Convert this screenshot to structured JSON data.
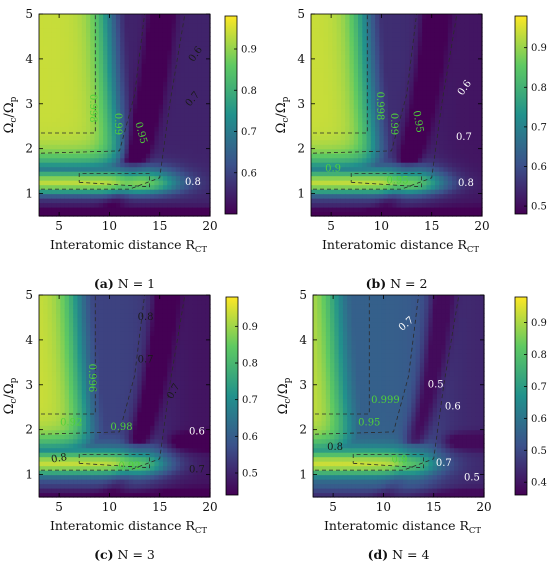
{
  "figure": {
    "panels_title": "Four heatmap panels"
  },
  "colormap": [
    "#440154",
    "#3b528b",
    "#21918c",
    "#5ec962",
    "#fde725"
  ],
  "contour_label_colors": {
    "dark": "#1a1a1a",
    "light": "#ffffff",
    "green": "#4fd13a"
  },
  "chart_data": [
    {
      "type": "heatmap",
      "caption": "(a) N = 1",
      "caption_bold": "(a)",
      "caption_rest": " N = 1",
      "xlabel": "Interatomic distance R",
      "xlabel_sub": "CT",
      "ylabel": "Ω",
      "ylabel_parts": [
        "Ω",
        "c",
        "/Ω",
        "p"
      ],
      "xlim": [
        3,
        20
      ],
      "ylim": [
        0.5,
        5
      ],
      "xticks": [
        5,
        10,
        15,
        20
      ],
      "yticks": [
        1,
        2,
        3,
        4,
        5
      ],
      "colorbar": {
        "range": [
          0.5,
          0.98
        ],
        "ticks": [
          0.6,
          0.7,
          0.8,
          0.9
        ],
        "labels": [
          "0.6",
          "0.7",
          "0.8",
          "0.9"
        ]
      },
      "contour_labels": [
        {
          "text": "0.6",
          "x": 18.6,
          "y": 4.1,
          "color": "dark",
          "rot": -55
        },
        {
          "text": "0.7",
          "x": 18.3,
          "y": 3.1,
          "color": "dark",
          "rot": -50
        },
        {
          "text": "0.8",
          "x": 18.3,
          "y": 1.25,
          "color": "light",
          "rot": 0
        },
        {
          "text": "0.998",
          "x": 8.3,
          "y": 2.9,
          "color": "green",
          "rot": 90
        },
        {
          "text": "0.99",
          "x": 10.8,
          "y": 2.55,
          "color": "green",
          "rot": 90
        },
        {
          "text": "0.95",
          "x": 13.1,
          "y": 2.35,
          "color": "green",
          "rot": 75
        }
      ]
    },
    {
      "type": "heatmap",
      "caption": "(b) N = 2",
      "caption_bold": "(b)",
      "caption_rest": " N = 2",
      "xlabel": "Interatomic distance R",
      "xlabel_sub": "CT",
      "ylabel": "Ω",
      "ylabel_parts": [
        "Ω",
        "c",
        "/Ω",
        "p"
      ],
      "xlim": [
        3,
        20
      ],
      "ylim": [
        0.5,
        5
      ],
      "xticks": [
        5,
        10,
        15,
        20
      ],
      "yticks": [
        1,
        2,
        3,
        4,
        5
      ],
      "colorbar": {
        "range": [
          0.48,
          0.98
        ],
        "ticks": [
          0.5,
          0.6,
          0.7,
          0.8,
          0.9
        ],
        "labels": [
          "0.5",
          "0.6",
          "0.7",
          "0.8",
          "0.9"
        ]
      },
      "contour_labels": [
        {
          "text": "0.6",
          "x": 18.3,
          "y": 3.35,
          "color": "light",
          "rot": -55
        },
        {
          "text": "0.7",
          "x": 18.2,
          "y": 2.25,
          "color": "light",
          "rot": 0
        },
        {
          "text": "0.8",
          "x": 18.4,
          "y": 1.22,
          "color": "light",
          "rot": 0
        },
        {
          "text": "0.998",
          "x": 9.8,
          "y": 2.95,
          "color": "green",
          "rot": 90
        },
        {
          "text": "0.99",
          "x": 11.2,
          "y": 2.55,
          "color": "green",
          "rot": 90
        },
        {
          "text": "0.95",
          "x": 13.6,
          "y": 2.6,
          "color": "green",
          "rot": 80
        },
        {
          "text": "0.9",
          "x": 5.2,
          "y": 1.55,
          "color": "green",
          "rot": 0
        },
        {
          "text": "0.95",
          "x": 11.6,
          "y": 1.28,
          "color": "green",
          "rot": 0
        }
      ]
    },
    {
      "type": "heatmap",
      "caption": "(c) N = 3",
      "caption_bold": "(c)",
      "caption_rest": " N = 3",
      "xlabel": "Interatomic distance R",
      "xlabel_sub": "CT",
      "ylabel": "Ω",
      "ylabel_parts": [
        "Ω",
        "c",
        "/Ω",
        "p"
      ],
      "xlim": [
        3,
        20
      ],
      "ylim": [
        0.5,
        5
      ],
      "xticks": [
        5,
        10,
        15,
        20
      ],
      "yticks": [
        1,
        2,
        3,
        4,
        5
      ],
      "colorbar": {
        "range": [
          0.44,
          0.98
        ],
        "ticks": [
          0.5,
          0.6,
          0.7,
          0.8,
          0.9
        ],
        "labels": [
          "0.5",
          "0.6",
          "0.7",
          "0.8",
          "0.9"
        ]
      },
      "contour_labels": [
        {
          "text": "0.8",
          "x": 13.6,
          "y": 4.5,
          "color": "dark",
          "rot": 0
        },
        {
          "text": "0.7",
          "x": 13.6,
          "y": 3.55,
          "color": "dark",
          "rot": 0
        },
        {
          "text": "0.7",
          "x": 16.4,
          "y": 2.85,
          "color": "dark",
          "rot": -60
        },
        {
          "text": "0.996",
          "x": 8.2,
          "y": 3.15,
          "color": "green",
          "rot": 90
        },
        {
          "text": "0.92",
          "x": 6.2,
          "y": 2.15,
          "color": "green",
          "rot": 0
        },
        {
          "text": "0.98",
          "x": 11.2,
          "y": 2.05,
          "color": "green",
          "rot": 0
        },
        {
          "text": "0.6",
          "x": 18.7,
          "y": 1.95,
          "color": "light",
          "rot": 0
        },
        {
          "text": "0.8",
          "x": 5.0,
          "y": 1.35,
          "color": "dark",
          "rot": -10
        },
        {
          "text": "0.92",
          "x": 12.0,
          "y": 1.18,
          "color": "green",
          "rot": 0
        },
        {
          "text": "0.7",
          "x": 18.7,
          "y": 1.1,
          "color": "dark",
          "rot": 0
        }
      ]
    },
    {
      "type": "heatmap",
      "caption": "(d) N = 4",
      "caption_bold": "(d)",
      "caption_rest": " N = 4",
      "xlabel": "Interatomic distance R",
      "xlabel_sub": "CT",
      "ylabel": "Ω",
      "ylabel_parts": [
        "Ω",
        "c",
        "/Ω",
        "p"
      ],
      "xlim": [
        3,
        20
      ],
      "ylim": [
        0.5,
        5
      ],
      "xticks": [
        5,
        10,
        15,
        20
      ],
      "yticks": [
        1,
        2,
        3,
        4,
        5
      ],
      "colorbar": {
        "range": [
          0.36,
          0.98
        ],
        "ticks": [
          0.4,
          0.5,
          0.6,
          0.7,
          0.8,
          0.9
        ],
        "labels": [
          "0.4",
          "0.5",
          "0.6",
          "0.7",
          "0.8",
          "0.9"
        ]
      },
      "contour_labels": [
        {
          "text": "0.7",
          "x": 12.3,
          "y": 4.35,
          "color": "light",
          "rot": -40
        },
        {
          "text": "0.999",
          "x": 10.2,
          "y": 2.65,
          "color": "green",
          "rot": 0
        },
        {
          "text": "0.5",
          "x": 15.2,
          "y": 3.0,
          "color": "light",
          "rot": 0
        },
        {
          "text": "0.6",
          "x": 16.9,
          "y": 2.5,
          "color": "light",
          "rot": 0
        },
        {
          "text": "0.95",
          "x": 8.6,
          "y": 2.15,
          "color": "green",
          "rot": 0
        },
        {
          "text": "0.8",
          "x": 5.2,
          "y": 1.6,
          "color": "dark",
          "rot": 0
        },
        {
          "text": "0.9",
          "x": 11.6,
          "y": 1.32,
          "color": "green",
          "rot": 0
        },
        {
          "text": "0.7",
          "x": 16.0,
          "y": 1.25,
          "color": "light",
          "rot": 0
        },
        {
          "text": "0.5",
          "x": 18.8,
          "y": 0.92,
          "color": "light",
          "rot": 0
        }
      ]
    }
  ]
}
